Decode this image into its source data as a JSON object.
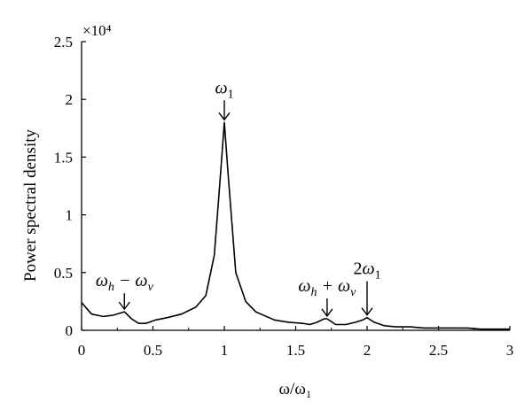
{
  "chart_data": {
    "type": "line",
    "title": "",
    "xlabel": "ω/ω₁",
    "ylabel": "Power spectral density",
    "y_multiplier_label": "×10⁴",
    "xlim": [
      0,
      3
    ],
    "ylim": [
      0,
      2.5
    ],
    "x_ticks": [
      0,
      0.5,
      1,
      1.5,
      2,
      2.5,
      3
    ],
    "x_tick_labels": [
      "0",
      "0.5",
      "1",
      "1.5",
      "2",
      "2.5",
      "3"
    ],
    "y_ticks": [
      0,
      0.5,
      1,
      1.5,
      2,
      2.5
    ],
    "y_tick_labels": [
      "0",
      "0.5",
      "1",
      "1.5",
      "2",
      "2.5"
    ],
    "grid": false,
    "legend": "none",
    "series": [
      {
        "x": [
          0,
          0.07,
          0.15,
          0.22,
          0.3,
          0.35,
          0.4,
          0.45,
          0.52,
          0.6,
          0.7,
          0.8,
          0.87,
          0.93,
          0.97,
          1.0,
          1.03,
          1.08,
          1.15,
          1.22,
          1.35,
          1.45,
          1.55,
          1.6,
          1.65,
          1.7,
          1.72,
          1.78,
          1.85,
          1.92,
          1.97,
          2.0,
          2.05,
          2.12,
          2.2,
          2.3,
          2.4,
          2.5,
          2.6,
          2.7,
          2.8,
          2.9,
          3.0
        ],
        "y": [
          0.24,
          0.14,
          0.12,
          0.13,
          0.16,
          0.1,
          0.06,
          0.06,
          0.09,
          0.11,
          0.14,
          0.2,
          0.3,
          0.65,
          1.3,
          1.8,
          1.3,
          0.5,
          0.25,
          0.16,
          0.09,
          0.07,
          0.06,
          0.05,
          0.07,
          0.1,
          0.1,
          0.05,
          0.05,
          0.07,
          0.09,
          0.11,
          0.07,
          0.04,
          0.03,
          0.03,
          0.02,
          0.02,
          0.02,
          0.02,
          0.01,
          0.01,
          0.01
        ]
      }
    ],
    "annotations": [
      {
        "text": "ω",
        "sub": "1",
        "prefix": "",
        "x": 1.0,
        "y": 1.8
      },
      {
        "text": "ω",
        "sub": "h",
        "rest": " − ω",
        "sub2": "v",
        "x": 0.3,
        "y": 0.16
      },
      {
        "text": "ω",
        "sub": "h",
        "rest": " + ω",
        "sub2": "v",
        "x": 1.72,
        "y": 0.1
      },
      {
        "text": "ω",
        "sub": "1",
        "prefix": "2",
        "x": 2.0,
        "y": 0.11
      }
    ]
  }
}
